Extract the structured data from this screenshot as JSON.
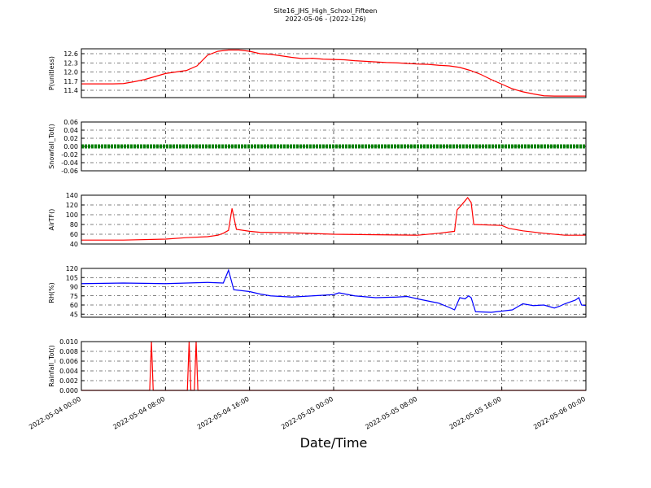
{
  "chart_data": [
    {
      "type": "line",
      "title": "Site16_JHS_High_School_Fifteen",
      "subtitle": "2022-05-06 - (2022-126)",
      "ylabel": "P(unitless)",
      "color": "#ff0000",
      "grid": true,
      "ylim": [
        11.16,
        12.76
      ],
      "yticks": [
        11.4,
        11.7,
        {
          "value": 12.0,
          "label": "12.0"
        },
        12.3,
        12.6
      ],
      "x": [
        "2022-05-04 00:00",
        "2022-05-04 01:00",
        "2022-05-04 02:00",
        "2022-05-04 03:00",
        "2022-05-04 04:00",
        "2022-05-04 05:00",
        "2022-05-04 06:00",
        "2022-05-04 07:00",
        "2022-05-04 08:00",
        "2022-05-04 09:00",
        "2022-05-04 10:00",
        "2022-05-04 11:00",
        "2022-05-04 12:00",
        "2022-05-04 13:00",
        "2022-05-04 14:00",
        "2022-05-04 15:00",
        "2022-05-04 16:00",
        "2022-05-04 17:00",
        "2022-05-04 18:00",
        "2022-05-04 19:00",
        "2022-05-04 20:00",
        "2022-05-04 21:00",
        "2022-05-04 22:00",
        "2022-05-04 23:00",
        "2022-05-05 00:00",
        "2022-05-05 01:00",
        "2022-05-05 02:00",
        "2022-05-05 03:00",
        "2022-05-05 04:00",
        "2022-05-05 05:00",
        "2022-05-05 06:00",
        "2022-05-05 07:00",
        "2022-05-05 08:00",
        "2022-05-05 09:00",
        "2022-05-05 10:00",
        "2022-05-05 11:00",
        "2022-05-05 12:00",
        "2022-05-05 13:00",
        "2022-05-05 14:00",
        "2022-05-05 15:00",
        "2022-05-05 16:00",
        "2022-05-05 17:00",
        "2022-05-05 18:00",
        "2022-05-05 19:00",
        "2022-05-05 20:00",
        "2022-05-05 21:00",
        "2022-05-05 22:00",
        "2022-05-05 23:00",
        "2022-05-06 00:00"
      ],
      "values": [
        11.61,
        11.61,
        11.61,
        11.61,
        11.62,
        11.68,
        11.75,
        11.85,
        11.95,
        12.0,
        12.05,
        12.2,
        12.55,
        12.68,
        12.72,
        12.72,
        12.68,
        12.6,
        12.58,
        12.53,
        12.48,
        12.44,
        12.45,
        12.42,
        12.41,
        12.4,
        12.37,
        12.35,
        12.33,
        12.31,
        12.3,
        12.28,
        12.26,
        12.25,
        12.22,
        12.2,
        12.15,
        12.05,
        11.92,
        11.75,
        11.6,
        11.45,
        11.35,
        11.28,
        11.22,
        11.21,
        11.21,
        11.21,
        11.21
      ]
    },
    {
      "type": "line",
      "ylabel": "Snowfall_Tot()",
      "color": "#008000",
      "grid": true,
      "ylim": [
        -0.06,
        0.06
      ],
      "yticks": [
        -0.06,
        -0.04,
        -0.02,
        {
          "value": 0,
          "label": "0.00"
        },
        0.02,
        0.04,
        0.06
      ],
      "x": [
        "2022-05-04 00:00",
        "2022-05-04 02:00",
        "2022-05-04 04:00",
        "2022-05-04 06:00",
        "2022-05-04 08:00",
        "2022-05-04 10:00",
        "2022-05-04 12:00",
        "2022-05-04 14:00",
        "2022-05-04 16:00",
        "2022-05-04 18:00",
        "2022-05-04 20:00",
        "2022-05-04 22:00",
        "2022-05-05 00:00",
        "2022-05-05 02:00",
        "2022-05-05 04:00",
        "2022-05-05 06:00",
        "2022-05-05 08:00",
        "2022-05-05 10:00",
        "2022-05-05 12:00",
        "2022-05-05 14:00",
        "2022-05-05 16:00",
        "2022-05-05 18:00",
        "2022-05-05 20:00",
        "2022-05-05 22:00",
        "2022-05-06 00:00"
      ],
      "values": [
        0,
        0,
        0,
        0,
        0,
        0,
        0,
        0,
        0,
        0,
        0,
        0,
        0,
        0,
        0,
        0,
        0,
        0,
        0,
        0,
        0,
        0,
        0,
        0,
        0
      ]
    },
    {
      "type": "line",
      "ylabel": "AirTF()",
      "color": "#ff0000",
      "grid": true,
      "ylim": [
        40,
        140
      ],
      "yticks": [
        40,
        60,
        80,
        100,
        120,
        140
      ],
      "x": [
        "2022-05-04 00:00",
        "2022-05-04 04:00",
        "2022-05-04 08:00",
        "2022-05-04 10:00",
        "2022-05-04 12:00",
        "2022-05-04 13:00",
        "2022-05-04 13:30",
        "2022-05-04 14:00",
        "2022-05-04 14:20",
        "2022-05-04 14:45",
        "2022-05-04 16:00",
        "2022-05-04 17:00",
        "2022-05-04 20:00",
        "2022-05-05 00:00",
        "2022-05-05 04:00",
        "2022-05-05 08:00",
        "2022-05-05 10:00",
        "2022-05-05 11:30",
        "2022-05-05 11:45",
        "2022-05-05 12:15",
        "2022-05-05 12:45",
        "2022-05-05 13:05",
        "2022-05-05 13:20",
        "2022-05-05 16:00",
        "2022-05-05 16:40",
        "2022-05-05 18:00",
        "2022-05-05 20:00",
        "2022-05-05 22:00",
        "2022-05-06 00:00"
      ],
      "values": [
        48,
        48,
        50,
        53,
        55,
        58,
        62,
        68,
        113,
        70,
        66,
        64,
        63,
        60,
        59,
        58,
        62,
        66,
        110,
        122,
        135,
        125,
        80,
        78,
        72,
        67,
        62,
        58,
        58
      ]
    },
    {
      "type": "line",
      "ylabel": "RH(%)",
      "color": "#0000ff",
      "grid": true,
      "ylim": [
        40,
        120
      ],
      "yticks": [
        45,
        60,
        75,
        90,
        105,
        120
      ],
      "x": [
        "2022-05-04 00:00",
        "2022-05-04 04:00",
        "2022-05-04 08:00",
        "2022-05-04 12:00",
        "2022-05-04 13:30",
        "2022-05-04 14:00",
        "2022-05-04 14:30",
        "2022-05-04 16:00",
        "2022-05-04 17:00",
        "2022-05-04 18:00",
        "2022-05-04 20:00",
        "2022-05-04 22:00",
        "2022-05-05 00:00",
        "2022-05-05 00:30",
        "2022-05-05 02:00",
        "2022-05-05 04:00",
        "2022-05-05 06:00",
        "2022-05-05 07:00",
        "2022-05-05 08:00",
        "2022-05-05 10:00",
        "2022-05-05 11:00",
        "2022-05-05 11:30",
        "2022-05-05 12:00",
        "2022-05-05 12:30",
        "2022-05-05 12:50",
        "2022-05-05 13:05",
        "2022-05-05 13:30",
        "2022-05-05 15:00",
        "2022-05-05 16:00",
        "2022-05-05 17:00",
        "2022-05-05 18:00",
        "2022-05-05 19:00",
        "2022-05-05 20:00",
        "2022-05-05 21:00",
        "2022-05-05 21:30",
        "2022-05-05 22:00",
        "2022-05-05 23:00",
        "2022-05-05 23:20",
        "2022-05-05 23:35",
        "2022-05-06 00:00"
      ],
      "values": [
        95,
        96,
        95,
        97,
        96,
        117,
        85,
        82,
        78,
        75,
        73,
        75,
        77,
        80,
        75,
        72,
        73,
        74,
        70,
        63,
        56,
        52,
        72,
        70,
        75,
        72,
        49,
        48,
        50,
        52,
        62,
        59,
        60,
        55,
        58,
        62,
        68,
        72,
        60,
        59
      ]
    },
    {
      "type": "line",
      "ylabel": "Rainfall_Tot()",
      "xlabel": "Date/Time",
      "color": "#ff0000",
      "grid": true,
      "xlim": [
        "2022-05-04 00:00",
        "2022-05-06 00:00"
      ],
      "xticks": [
        "2022-05-04 00:00",
        "2022-05-04 08:00",
        "2022-05-04 16:00",
        "2022-05-05 00:00",
        "2022-05-05 08:00",
        "2022-05-05 16:00",
        "2022-05-06 00:00"
      ],
      "ylim": [
        0,
        0.01
      ],
      "yticks": [
        {
          "value": 0,
          "label": "0.000"
        },
        0.002,
        0.004,
        0.006,
        0.008,
        {
          "value": 0.01,
          "label": "0.010"
        }
      ],
      "x": [
        "2022-05-04 00:00",
        "2022-05-04 06:30",
        "2022-05-04 06:40",
        "2022-05-04 06:50",
        "2022-05-04 10:05",
        "2022-05-04 10:15",
        "2022-05-04 10:25",
        "2022-05-04 10:45",
        "2022-05-04 10:55",
        "2022-05-04 11:05",
        "2022-05-06 00:00"
      ],
      "values": [
        0,
        0,
        0.01,
        0,
        0,
        0.01,
        0,
        0,
        0.01,
        0,
        0
      ]
    }
  ]
}
